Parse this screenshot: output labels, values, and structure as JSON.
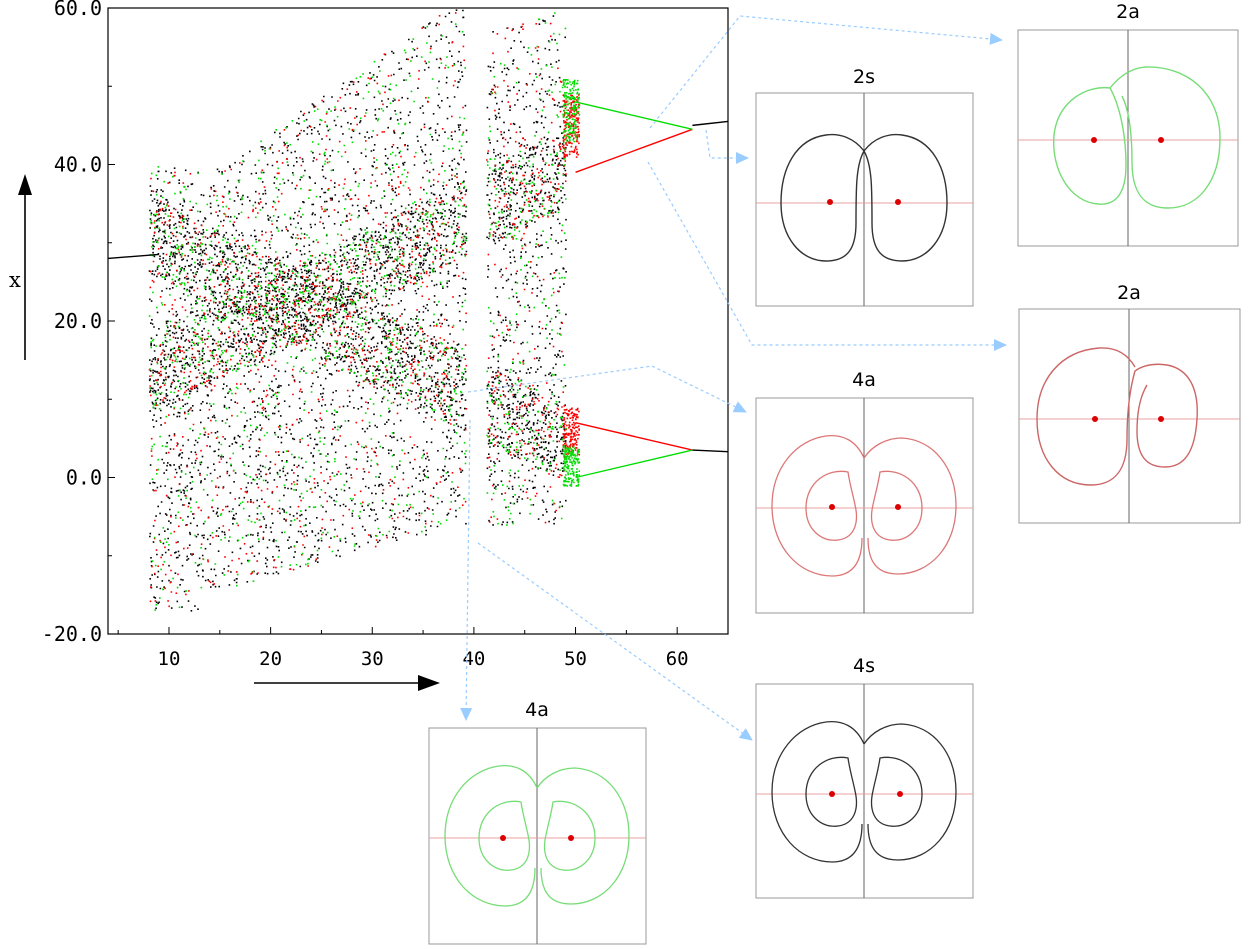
{
  "chart_data": {
    "type": "scatter",
    "title": "",
    "xlabel": "",
    "ylabel": "x",
    "xlim": [
      4,
      65
    ],
    "ylim": [
      -20,
      60
    ],
    "x_ticks": [
      "10",
      "20",
      "30",
      "40",
      "50",
      "60"
    ],
    "y_ticks": [
      "-20.0",
      "0.0",
      "20.0",
      "40.0",
      "60.0"
    ],
    "series_colors": {
      "symmetric": "#000000",
      "upper_branch": "#ff0000",
      "lower_branch": "#00dd00"
    },
    "description_values": {
      "stable_branches": [
        {
          "x": [
            4,
            9
          ],
          "y": [
            28,
            28.5
          ],
          "color": "#000000"
        },
        {
          "x": [
            50,
            61.5
          ],
          "y": [
            39,
            44.5
          ],
          "color": "#ff0000"
        },
        {
          "x": [
            50,
            61.5
          ],
          "y": [
            48,
            44.5
          ],
          "color": "#00dd00"
        },
        {
          "x": [
            50,
            61.5
          ],
          "y": [
            7,
            3.5
          ],
          "color": "#ff0000"
        },
        {
          "x": [
            50,
            61.5
          ],
          "y": [
            0,
            3.5
          ],
          "color": "#00dd00"
        },
        {
          "x": [
            61.5,
            65
          ],
          "y": [
            45,
            45.5
          ],
          "color": "#000000"
        },
        {
          "x": [
            61.5,
            65
          ],
          "y": [
            3.5,
            3.3
          ],
          "color": "#000000"
        }
      ]
    },
    "insets": [
      {
        "label": "2s",
        "color": "#333333"
      },
      {
        "label": "2a",
        "color": "#77dd77"
      },
      {
        "label": "2a",
        "color": "#cc6666"
      },
      {
        "label": "4a",
        "color": "#dd7777"
      },
      {
        "label": "4s",
        "color": "#333333"
      },
      {
        "label": "4a",
        "color": "#77dd77"
      }
    ]
  },
  "colors": {
    "arrow": "#99ccff",
    "frame": "#999999",
    "axis": "#000000"
  }
}
